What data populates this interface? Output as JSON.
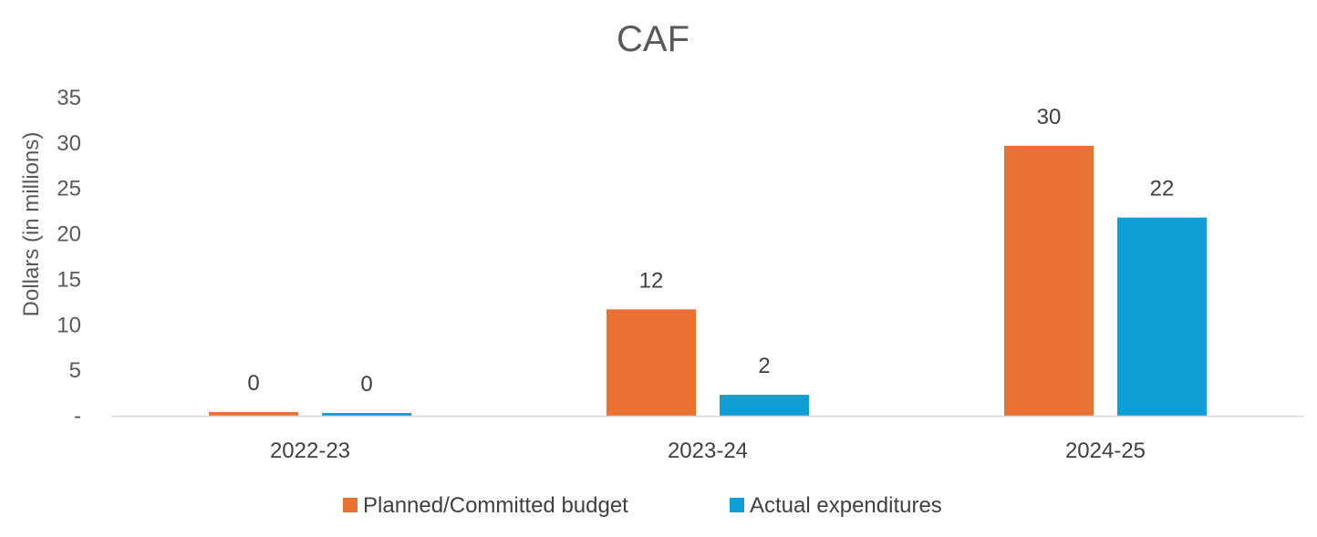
{
  "chart_data": {
    "type": "bar",
    "title": "CAF",
    "xlabel": "",
    "ylabel": "Dollars (in millions)",
    "ylim": [
      0,
      35
    ],
    "yticks": [
      0,
      5,
      10,
      15,
      20,
      25,
      30,
      35
    ],
    "ytick_labels": [
      "-",
      "5",
      "10",
      "15",
      "20",
      "25",
      "30",
      "35"
    ],
    "grid": false,
    "legend_position": "bottom",
    "categories": [
      "2022-23",
      "2023-24",
      "2024-25"
    ],
    "series": [
      {
        "name": "Planned/Committed budget",
        "color": "#E97132",
        "values": [
          0.4,
          11.7,
          29.7
        ],
        "labels": [
          "0",
          "12",
          "30"
        ]
      },
      {
        "name": "Actual expenditures",
        "color": "#0F9ED5",
        "values": [
          0.3,
          2.3,
          21.8
        ],
        "labels": [
          "0",
          "2",
          "22"
        ]
      }
    ]
  }
}
